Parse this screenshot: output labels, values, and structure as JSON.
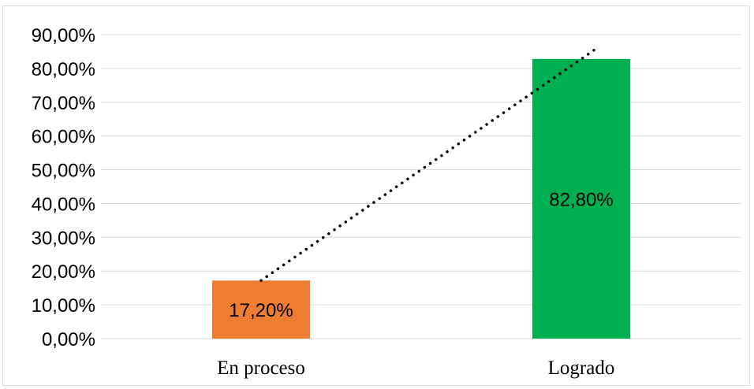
{
  "chart_data": {
    "type": "bar",
    "categories": [
      "En proceso",
      "Logrado"
    ],
    "values": [
      17.2,
      82.8
    ],
    "value_labels": [
      "17,20%",
      "82,80%"
    ],
    "colors": [
      "#ed7d31",
      "#00b050"
    ],
    "ylim": [
      0,
      90
    ],
    "yticks": [
      0,
      10,
      20,
      30,
      40,
      50,
      60,
      70,
      80,
      90
    ],
    "ytick_labels": [
      "0,00%",
      "10,00%",
      "20,00%",
      "30,00%",
      "40,00%",
      "50,00%",
      "60,00%",
      "70,00%",
      "80,00%",
      "90,00%"
    ],
    "grid": true,
    "gridline_color": "#d9d9d9",
    "trendline": {
      "type": "linear",
      "style": "dotted",
      "color": "#000000"
    },
    "legend": "none",
    "title": "",
    "xlabel": "",
    "ylabel": ""
  }
}
